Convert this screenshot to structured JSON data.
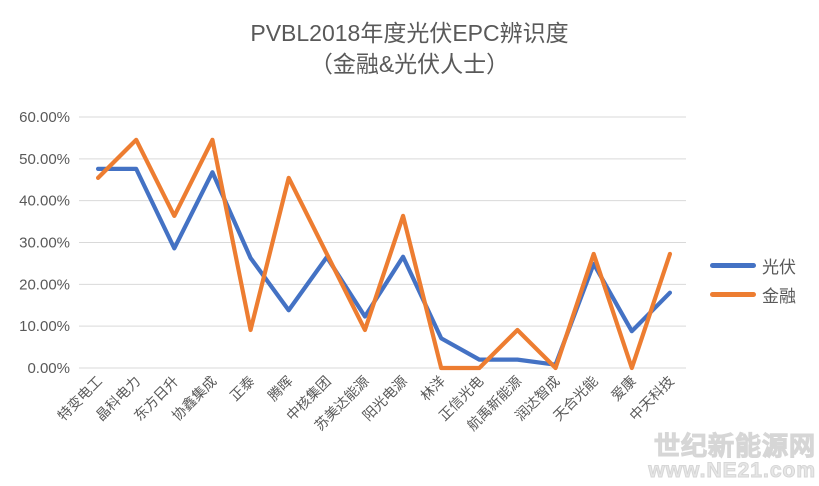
{
  "title": {
    "line1": "PVBL2018年度光伏EPC辨识度",
    "line2": "（金融&光伏人士）"
  },
  "watermark": {
    "line1": "世纪新能源网",
    "line2": "www.NE21.com"
  },
  "colors": {
    "background": "#FFFFFF",
    "grid": "#D9D9D9",
    "axis_text": "#595959",
    "title_text": "#595959",
    "pv_series": "#4472C4",
    "finance_series": "#ED7D31"
  },
  "chart_data": {
    "type": "line",
    "title": "PVBL2018年度光伏EPC辨识度（金融&光伏人士）",
    "xlabel": "",
    "ylabel": "",
    "ylim": [
      0,
      60
    ],
    "grid": true,
    "legend_position": "right",
    "y_ticks": [
      "0.00%",
      "10.00%",
      "20.00%",
      "30.00%",
      "40.00%",
      "50.00%",
      "60.00%"
    ],
    "categories": [
      "特变电工",
      "晶科电力",
      "东方日升",
      "协鑫集成",
      "正泰",
      "腾晖",
      "中核集团",
      "苏美达能源",
      "阳光电源",
      "林洋",
      "正信光电",
      "航禹新能源",
      "润达智成",
      "天合光能",
      "爱康",
      "中天科技"
    ],
    "series": [
      {
        "name": "光伏",
        "color": "#4472C4",
        "values": [
          47.6,
          47.6,
          28.6,
          46.8,
          26.3,
          13.8,
          26.5,
          12.3,
          26.6,
          7.1,
          2.0,
          2.0,
          0.8,
          24.9,
          8.8,
          18.0
        ]
      },
      {
        "name": "金融",
        "color": "#ED7D31",
        "values": [
          45.45,
          54.55,
          36.36,
          54.55,
          9.09,
          45.45,
          27.27,
          9.09,
          36.36,
          0.0,
          0.0,
          9.09,
          0.0,
          27.27,
          0.0,
          27.27
        ]
      }
    ]
  }
}
